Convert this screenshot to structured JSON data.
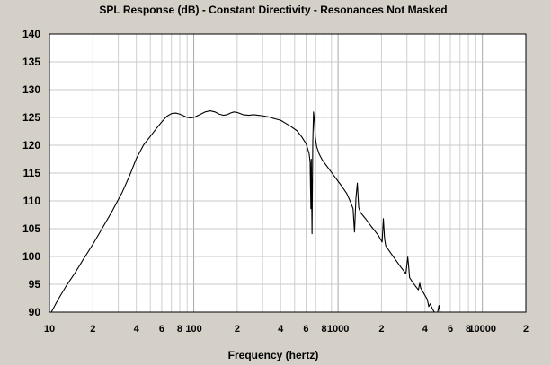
{
  "chart_data": {
    "type": "line",
    "title": "SPL Response (dB) - Constant Directivity - Resonances Not Masked",
    "xlabel": "Frequency (hertz)",
    "ylabel": "",
    "x_scale": "log",
    "xlim": [
      10,
      20000
    ],
    "ylim": [
      90,
      140
    ],
    "grid": true,
    "yticks": [
      90,
      95,
      100,
      105,
      110,
      115,
      120,
      125,
      130,
      135,
      140
    ],
    "xticks": [
      {
        "v": 10,
        "label": "10"
      },
      {
        "v": 20,
        "label": "2"
      },
      {
        "v": 40,
        "label": "4"
      },
      {
        "v": 60,
        "label": "6"
      },
      {
        "v": 80,
        "label": "8"
      },
      {
        "v": 100,
        "label": "100"
      },
      {
        "v": 200,
        "label": "2"
      },
      {
        "v": 400,
        "label": "4"
      },
      {
        "v": 600,
        "label": "6"
      },
      {
        "v": 800,
        "label": "8"
      },
      {
        "v": 1000,
        "label": "1000"
      },
      {
        "v": 2000,
        "label": "2"
      },
      {
        "v": 4000,
        "label": "4"
      },
      {
        "v": 6000,
        "label": "6"
      },
      {
        "v": 8000,
        "label": "8"
      },
      {
        "v": 10000,
        "label": "10000"
      },
      {
        "v": 20000,
        "label": "2"
      }
    ],
    "series": [
      {
        "color": "#000000",
        "points": [
          [
            10.3,
            90
          ],
          [
            11.5,
            92.3
          ],
          [
            13,
            94.6
          ],
          [
            15,
            97.0
          ],
          [
            17,
            99.3
          ],
          [
            20,
            102.2
          ],
          [
            23,
            104.9
          ],
          [
            27,
            108.0
          ],
          [
            32,
            111.6
          ],
          [
            36,
            114.6
          ],
          [
            40,
            117.6
          ],
          [
            45,
            120.1
          ],
          [
            50,
            121.6
          ],
          [
            55,
            123.0
          ],
          [
            60,
            124.2
          ],
          [
            65,
            125.2
          ],
          [
            70,
            125.7
          ],
          [
            75,
            125.8
          ],
          [
            80,
            125.6
          ],
          [
            85,
            125.3
          ],
          [
            90,
            125.0
          ],
          [
            95,
            124.9
          ],
          [
            100,
            125.0
          ],
          [
            110,
            125.5
          ],
          [
            120,
            126.0
          ],
          [
            130,
            126.2
          ],
          [
            140,
            126.0
          ],
          [
            150,
            125.6
          ],
          [
            160,
            125.4
          ],
          [
            170,
            125.5
          ],
          [
            180,
            125.8
          ],
          [
            190,
            126.0
          ],
          [
            200,
            125.9
          ],
          [
            220,
            125.5
          ],
          [
            240,
            125.4
          ],
          [
            260,
            125.5
          ],
          [
            280,
            125.4
          ],
          [
            300,
            125.3
          ],
          [
            330,
            125.1
          ],
          [
            360,
            124.8
          ],
          [
            400,
            124.5
          ],
          [
            430,
            124.0
          ],
          [
            470,
            123.4
          ],
          [
            520,
            122.6
          ],
          [
            560,
            121.5
          ],
          [
            600,
            120.3
          ],
          [
            630,
            118.5
          ],
          [
            640,
            117.0
          ],
          [
            648,
            108.6
          ],
          [
            652,
            117.5
          ],
          [
            660,
            104.1
          ],
          [
            668,
            120.5
          ],
          [
            676,
            126.0
          ],
          [
            684,
            124.8
          ],
          [
            695,
            121.5
          ],
          [
            710,
            119.8
          ],
          [
            740,
            118.4
          ],
          [
            780,
            117.3
          ],
          [
            850,
            116.0
          ],
          [
            950,
            114.3
          ],
          [
            1050,
            112.8
          ],
          [
            1150,
            111.3
          ],
          [
            1220,
            109.8
          ],
          [
            1270,
            108.6
          ],
          [
            1300,
            104.4
          ],
          [
            1330,
            110.5
          ],
          [
            1360,
            113.2
          ],
          [
            1390,
            108.8
          ],
          [
            1430,
            107.9
          ],
          [
            1550,
            106.8
          ],
          [
            1700,
            105.4
          ],
          [
            1900,
            103.8
          ],
          [
            2020,
            102.6
          ],
          [
            2060,
            106.8
          ],
          [
            2100,
            103.2
          ],
          [
            2140,
            101.9
          ],
          [
            2350,
            100.4
          ],
          [
            2650,
            98.5
          ],
          [
            2950,
            96.9
          ],
          [
            3000,
            98.6
          ],
          [
            3040,
            99.9
          ],
          [
            3080,
            98.4
          ],
          [
            3130,
            96.2
          ],
          [
            3300,
            95.3
          ],
          [
            3500,
            94.4
          ],
          [
            3600,
            94.0
          ],
          [
            3680,
            95.2
          ],
          [
            3740,
            94.3
          ],
          [
            3900,
            93.5
          ],
          [
            4150,
            92.3
          ],
          [
            4250,
            91.0
          ],
          [
            4350,
            91.5
          ],
          [
            4500,
            90.6
          ],
          [
            4650,
            90.0
          ]
        ]
      },
      {
        "color": "#000000",
        "points": [
          [
            4900,
            90.0
          ],
          [
            5000,
            91.2
          ],
          [
            5100,
            90.0
          ]
        ]
      }
    ]
  }
}
